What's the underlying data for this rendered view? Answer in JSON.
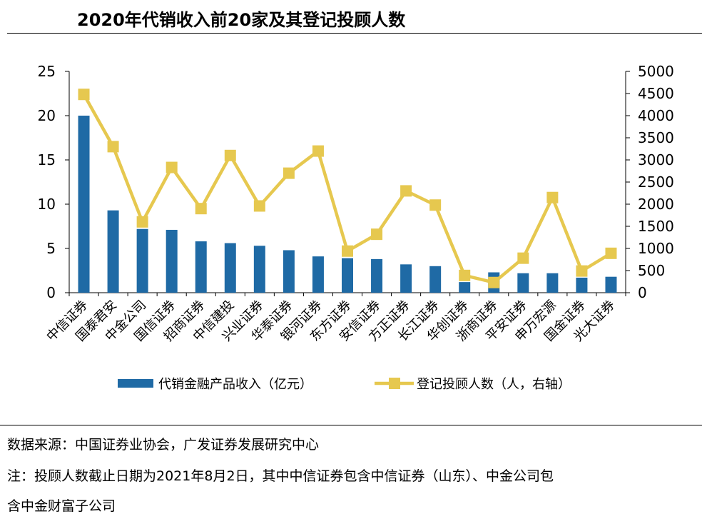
{
  "title": "2020年代销收入前20家及其登记投顾人数",
  "chart_data": {
    "type": "bar+line",
    "categories": [
      "中信证券",
      "国泰君安",
      "中金公司",
      "国信证券",
      "招商证券",
      "中信建投",
      "兴业证券",
      "华泰证券",
      "银河证券",
      "东方证券",
      "安信证券",
      "方正证券",
      "长江证券",
      "华创证券",
      "浙商证券",
      "平安证券",
      "申万宏源",
      "国金证券",
      "光大证券"
    ],
    "series": [
      {
        "name": "代销金融产品收入（亿元）",
        "type": "bar",
        "axis": "left",
        "color": "#1f6aa5",
        "values": [
          20.0,
          9.3,
          7.2,
          7.1,
          5.8,
          5.6,
          5.3,
          4.8,
          4.1,
          3.9,
          3.8,
          3.2,
          3.0,
          1.2,
          2.3,
          2.2,
          2.2,
          1.7,
          1.8
        ]
      },
      {
        "name": "登记投顾人数（人，右轴）",
        "type": "line",
        "axis": "right",
        "color": "#e6c84f",
        "values": [
          4480,
          3300,
          1600,
          2830,
          1900,
          3100,
          1960,
          2700,
          3200,
          940,
          1320,
          2300,
          1980,
          390,
          230,
          780,
          2150,
          490,
          890
        ]
      }
    ],
    "left_axis": {
      "min": 0,
      "max": 25,
      "ticks": [
        0,
        5,
        10,
        15,
        20,
        25
      ]
    },
    "right_axis": {
      "min": 0,
      "max": 5000,
      "ticks": [
        0,
        500,
        1000,
        1500,
        2000,
        2500,
        3000,
        3500,
        4000,
        4500,
        5000
      ]
    },
    "legend": "bottom"
  },
  "notes": {
    "source": "数据来源：中国证券业协会，广发证券发展研究中心",
    "note_line1": "注：投顾人数截止日期为2021年8月2日，其中中信证券包含中信证券（山东）、中金公司包",
    "note_line2": "含中金财富子公司"
  }
}
